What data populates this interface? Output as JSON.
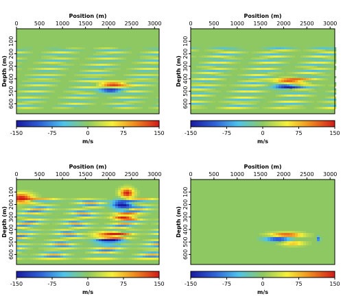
{
  "colors": {
    "background_green": "#8ec862",
    "colormap": [
      "#1a1aa0",
      "#2f62d6",
      "#4ec3ea",
      "#8ec862",
      "#f6f03a",
      "#ef8a1f",
      "#d11a1a"
    ]
  },
  "chart_data": [
    {
      "type": "heatmap",
      "title": "",
      "xlabel": "Position (m)",
      "ylabel": "Depth (m)",
      "xlim": [
        0,
        3100
      ],
      "ylim": [
        0,
        680
      ],
      "x_ticks": [
        "0",
        "500",
        "1000",
        "1500",
        "2000",
        "2500",
        "3000"
      ],
      "y_ticks": [
        "100",
        "200",
        "300",
        "400",
        "500",
        "600"
      ],
      "colorbar": {
        "label": "m/s",
        "range": [
          -150,
          150
        ],
        "ticks": [
          "-150",
          "-75",
          "0",
          "75",
          "150"
        ]
      },
      "features": [
        {
          "kind": "layers",
          "depth_from": 150,
          "depth_to": 640,
          "spacing": 45,
          "amplitude": 45
        },
        {
          "kind": "anomaly",
          "x": 2100,
          "depth": 450,
          "value": 140,
          "width": 300,
          "height": 25
        },
        {
          "kind": "anomaly",
          "x": 2050,
          "depth": 490,
          "value": -140,
          "width": 250,
          "height": 22
        }
      ]
    },
    {
      "type": "heatmap",
      "title": "",
      "xlabel": "Position (m)",
      "ylabel": "Depth (m)",
      "xlim": [
        0,
        3100
      ],
      "ylim": [
        0,
        680
      ],
      "x_ticks": [
        "0",
        "500",
        "1000",
        "1500",
        "2000",
        "2500",
        "3000"
      ],
      "y_ticks": [
        "100",
        "200",
        "300",
        "400",
        "500",
        "600"
      ],
      "colorbar": {
        "label": "m/s",
        "range": [
          -150,
          150
        ],
        "ticks": [
          "-150",
          "-75",
          "0",
          "75",
          "150"
        ]
      },
      "features": [
        {
          "kind": "layers",
          "depth_from": 150,
          "depth_to": 640,
          "spacing": 45,
          "amplitude": 55
        },
        {
          "kind": "anomaly",
          "x": 2150,
          "depth": 420,
          "value": 140,
          "width": 330,
          "height": 25
        },
        {
          "kind": "anomaly",
          "x": 2050,
          "depth": 460,
          "value": -140,
          "width": 280,
          "height": 22
        }
      ]
    },
    {
      "type": "heatmap",
      "title": "",
      "xlabel": "Position (m)",
      "ylabel": "Depth (m)",
      "xlim": [
        0,
        3100
      ],
      "ylim": [
        0,
        680
      ],
      "x_ticks": [
        "0",
        "500",
        "1000",
        "1500",
        "2000",
        "2500",
        "3000"
      ],
      "y_ticks": [
        "100",
        "200",
        "300",
        "400",
        "500",
        "600"
      ],
      "colorbar": {
        "label": "m/s",
        "range": [
          -150,
          150
        ],
        "ticks": [
          "-150",
          "-75",
          "0",
          "75",
          "150"
        ]
      },
      "features": [
        {
          "kind": "layers",
          "depth_from": 150,
          "depth_to": 640,
          "spacing": 40,
          "amplitude": 80
        },
        {
          "kind": "anomaly",
          "x": 2400,
          "depth": 110,
          "value": 150,
          "width": 150,
          "height": 40
        },
        {
          "kind": "anomaly",
          "x": 2300,
          "depth": 200,
          "value": -150,
          "width": 220,
          "height": 40
        },
        {
          "kind": "anomaly",
          "x": 2350,
          "depth": 300,
          "value": 130,
          "width": 250,
          "height": 30
        },
        {
          "kind": "anomaly",
          "x": 2050,
          "depth": 450,
          "value": 150,
          "width": 350,
          "height": 30
        },
        {
          "kind": "anomaly",
          "x": 2000,
          "depth": 490,
          "value": -150,
          "width": 300,
          "height": 25
        },
        {
          "kind": "anomaly",
          "x": 100,
          "depth": 150,
          "value": 150,
          "width": 250,
          "height": 40
        }
      ]
    },
    {
      "type": "heatmap",
      "title": "",
      "xlabel": "Position (m)",
      "ylabel": "Depth (m)",
      "xlim": [
        0,
        3100
      ],
      "ylim": [
        0,
        680
      ],
      "x_ticks": [
        "0",
        "500",
        "1000",
        "1500",
        "2000",
        "2500",
        "3000"
      ],
      "y_ticks": [
        "100",
        "200",
        "300",
        "400",
        "500",
        "600"
      ],
      "colorbar": {
        "label": "m/s",
        "range": [
          -150,
          150
        ],
        "ticks": [
          "-150",
          "-75",
          "0",
          "75",
          "150"
        ]
      },
      "features": [
        {
          "kind": "anomaly",
          "x": 2050,
          "depth": 445,
          "value": 140,
          "width": 350,
          "height": 20
        },
        {
          "kind": "anomaly",
          "x": 1900,
          "depth": 475,
          "value": -140,
          "width": 300,
          "height": 20
        },
        {
          "kind": "anomaly",
          "x": 2200,
          "depth": 510,
          "value": 80,
          "width": 250,
          "height": 20
        },
        {
          "kind": "anomaly",
          "x": 2750,
          "depth": 475,
          "value": -100,
          "width": 40,
          "height": 20
        }
      ]
    }
  ]
}
